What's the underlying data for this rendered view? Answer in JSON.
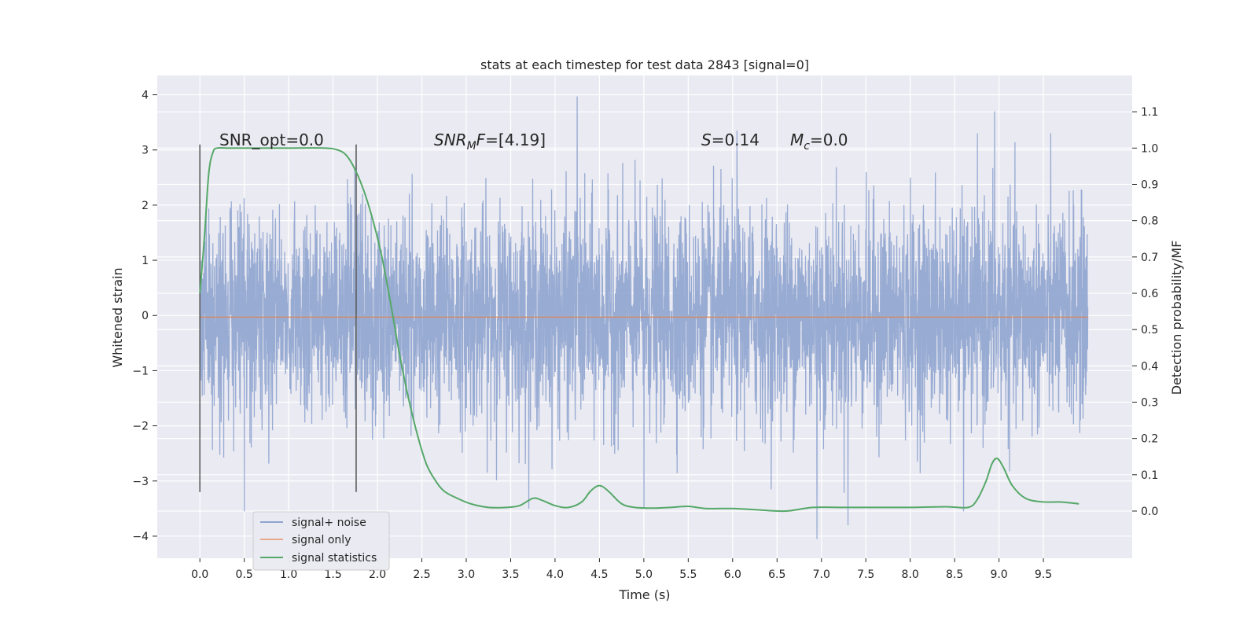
{
  "chart_data": {
    "type": "line",
    "title": "stats at each timestep for test data 2843 [signal=0]",
    "xlabel": "Time (s)",
    "ylabel": "Whitened strain",
    "ylabel_right": "Detection probability/MF",
    "xlim": [
      -0.48,
      10.5
    ],
    "ylim": [
      -4.4,
      4.35
    ],
    "ylim_right": [
      -0.13,
      1.2
    ],
    "x_ticks": [
      "0.0",
      "0.5",
      "1.0",
      "1.5",
      "2.0",
      "2.5",
      "3.0",
      "3.5",
      "4.0",
      "4.5",
      "5.0",
      "5.5",
      "6.0",
      "6.5",
      "7.0",
      "7.5",
      "8.0",
      "8.5",
      "9.0",
      "9.5"
    ],
    "y_ticks": [
      "4",
      "3",
      "2",
      "1",
      "0",
      "−1",
      "−2",
      "−3",
      "−4"
    ],
    "y_right_ticks": [
      "1.1",
      "1.0",
      "0.9",
      "0.8",
      "0.7",
      "0.6",
      "0.5",
      "0.4",
      "0.3",
      "0.2",
      "0.1",
      "0.0"
    ],
    "grid": true,
    "legend_position": "lower-left",
    "series": [
      {
        "name": "signal+ noise",
        "color": "#8fa4cf",
        "time_range": [
          0.0,
          10.0
        ],
        "approx_sample_count": 4096,
        "typical_range": [
          -1.3,
          1.2
        ],
        "approx_max": 3.97,
        "approx_min": -4.05,
        "notable_peaks": [
          {
            "x": 4.25,
            "y": 3.97
          },
          {
            "x": 8.95,
            "y": 3.7
          },
          {
            "x": 6.05,
            "y": 3.35
          },
          {
            "x": 6.95,
            "y": -4.05
          },
          {
            "x": 7.3,
            "y": -3.8
          },
          {
            "x": 0.5,
            "y": -3.55
          },
          {
            "x": 5.0,
            "y": -3.5
          },
          {
            "x": 8.6,
            "y": -3.55
          }
        ]
      },
      {
        "name": "signal only",
        "color": "#dd8452",
        "x": [
          0.0,
          10.0
        ],
        "y": [
          -0.03,
          -0.03
        ]
      },
      {
        "name": "signal statistics",
        "color": "#55a868",
        "axis": "right",
        "x": [
          0.0,
          0.05,
          0.1,
          0.15,
          0.2,
          0.3,
          0.5,
          1.0,
          1.4,
          1.55,
          1.65,
          1.75,
          1.85,
          1.95,
          2.05,
          2.15,
          2.25,
          2.35,
          2.45,
          2.55,
          2.65,
          2.75,
          2.9,
          3.05,
          3.25,
          3.45,
          3.6,
          3.75,
          3.85,
          4.0,
          4.15,
          4.3,
          4.4,
          4.5,
          4.6,
          4.75,
          4.9,
          5.1,
          5.3,
          5.5,
          5.7,
          6.0,
          6.3,
          6.6,
          6.9,
          7.2,
          7.6,
          8.0,
          8.4,
          8.65,
          8.75,
          8.85,
          8.92,
          8.98,
          9.05,
          9.15,
          9.3,
          9.5,
          9.7,
          9.9
        ],
        "y": [
          0.6,
          0.75,
          0.93,
          0.99,
          1.0,
          1.0,
          1.0,
          1.0,
          1.0,
          0.995,
          0.98,
          0.94,
          0.88,
          0.8,
          0.7,
          0.57,
          0.43,
          0.31,
          0.21,
          0.13,
          0.085,
          0.055,
          0.035,
          0.02,
          0.01,
          0.01,
          0.015,
          0.035,
          0.03,
          0.015,
          0.01,
          0.025,
          0.055,
          0.07,
          0.055,
          0.02,
          0.01,
          0.008,
          0.01,
          0.013,
          0.007,
          0.007,
          0.003,
          0.0,
          0.01,
          0.01,
          0.01,
          0.01,
          0.012,
          0.01,
          0.03,
          0.08,
          0.13,
          0.145,
          0.12,
          0.07,
          0.035,
          0.025,
          0.025,
          0.02
        ]
      }
    ],
    "vertical_lines": [
      {
        "x": 0.0,
        "y_range": [
          -3.2,
          3.1
        ]
      },
      {
        "x": 1.76,
        "y_range": [
          -3.2,
          3.1
        ]
      }
    ],
    "annotations": {
      "snr_opt": "SNR_opt=0.0",
      "snr_mf_main": "SNR",
      "snr_mf_sub": "M",
      "snr_mf_rest": "F",
      "snr_mf_value": "=[4.19]",
      "s_label": "S",
      "s_value": "=0.14",
      "mc_label": "M",
      "mc_sub": "c",
      "mc_value": "=0.0"
    },
    "colors": {
      "plot_background": "#eaeaf2",
      "grid": "#ffffff",
      "vertical_line": "#555555"
    }
  }
}
